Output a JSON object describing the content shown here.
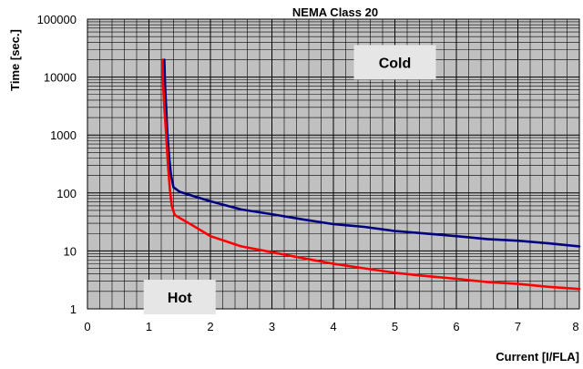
{
  "chart_data": {
    "type": "line",
    "title": "NEMA Class 20",
    "xlabel": "Current [I/FLA]",
    "ylabel": "Time [sec.]",
    "xlim": [
      0,
      8
    ],
    "ylim": [
      1,
      100000
    ],
    "yscale": "log",
    "x_ticks": [
      "0",
      "1",
      "2",
      "3",
      "4",
      "5",
      "6",
      "7",
      "8"
    ],
    "y_ticks": [
      "1",
      "10",
      "100",
      "1000",
      "10000",
      "100000"
    ],
    "grid": true,
    "colors": {
      "plot_background": "#c0c0c0",
      "grid": "#000000"
    },
    "series": [
      {
        "name": "Cold",
        "color": "#000080",
        "x": [
          1.25,
          1.26,
          1.28,
          1.3,
          1.33,
          1.36,
          1.4,
          1.5,
          1.7,
          2.0,
          2.5,
          3.0,
          3.5,
          4.0,
          4.5,
          5.0,
          5.5,
          6.0,
          6.5,
          7.0,
          7.5,
          8.0
        ],
        "y": [
          20000,
          8000,
          3000,
          1000,
          400,
          200,
          125,
          105,
          90,
          72,
          52,
          43,
          35,
          29,
          26,
          22,
          20,
          18,
          16,
          15,
          13.5,
          12
        ]
      },
      {
        "name": "Hot",
        "color": "#ff0000",
        "x": [
          1.22,
          1.23,
          1.25,
          1.28,
          1.31,
          1.34,
          1.37,
          1.42,
          1.5,
          1.7,
          2.0,
          2.5,
          3.0,
          3.5,
          4.0,
          4.5,
          5.0,
          5.5,
          6.0,
          6.5,
          7.0,
          7.5,
          8.0
        ],
        "y": [
          20000,
          8000,
          3000,
          1000,
          300,
          120,
          60,
          42,
          37,
          28,
          18,
          12,
          9.5,
          7.5,
          6,
          5,
          4.2,
          3.7,
          3.3,
          2.9,
          2.7,
          2.4,
          2.2
        ]
      }
    ],
    "annotations": [
      {
        "text": "Cold",
        "x": 5.0,
        "y": 18000
      },
      {
        "text": "Hot",
        "x": 1.5,
        "y": 1.6
      }
    ]
  }
}
